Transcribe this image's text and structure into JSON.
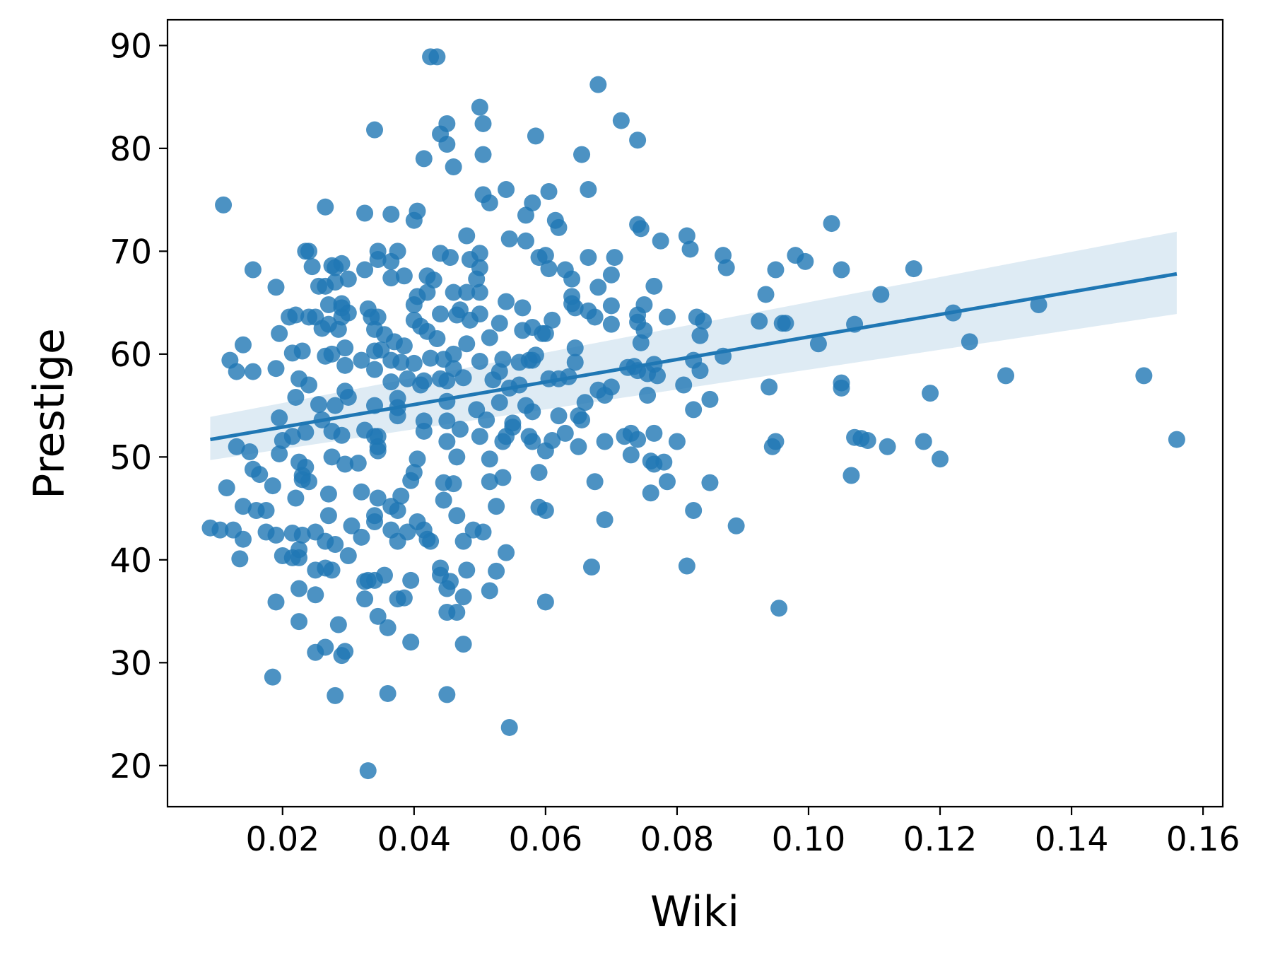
{
  "chart_data": {
    "type": "scatter",
    "xlabel": "Wiki",
    "ylabel": "Prestige",
    "xlim": [
      0.0025,
      0.163
    ],
    "ylim": [
      16,
      92.5
    ],
    "x_ticks": [
      0.02,
      0.04,
      0.06,
      0.08,
      0.1,
      0.12,
      0.14,
      0.16
    ],
    "x_tick_labels": [
      "0.02",
      "0.04",
      "0.06",
      "0.08",
      "0.10",
      "0.12",
      "0.14",
      "0.16"
    ],
    "y_ticks": [
      20,
      30,
      40,
      50,
      60,
      70,
      80,
      90
    ],
    "y_tick_labels": [
      "20",
      "30",
      "40",
      "50",
      "60",
      "70",
      "80",
      "90"
    ],
    "grid": false,
    "legend": "none",
    "colors": {
      "points": "#1f77b4",
      "line": "#1f77b4",
      "band": "#1f77b4"
    },
    "regression": {
      "x": [
        0.009,
        0.156
      ],
      "y": [
        51.7,
        67.8
      ],
      "ci_upper": [
        53.9,
        71.9
      ],
      "ci_lower": [
        49.7,
        63.9
      ]
    },
    "points": [
      [
        0.0425,
        88.9
      ],
      [
        0.0435,
        88.9
      ],
      [
        0.068,
        86.2
      ],
      [
        0.05,
        84.0
      ],
      [
        0.0715,
        82.7
      ],
      [
        0.045,
        82.4
      ],
      [
        0.0505,
        82.4
      ],
      [
        0.034,
        81.8
      ],
      [
        0.044,
        81.4
      ],
      [
        0.0585,
        81.2
      ],
      [
        0.074,
        80.8
      ],
      [
        0.045,
        80.4
      ],
      [
        0.0505,
        79.4
      ],
      [
        0.0655,
        79.4
      ],
      [
        0.0415,
        79.0
      ],
      [
        0.046,
        78.2
      ],
      [
        0.0665,
        76.0
      ],
      [
        0.054,
        76.0
      ],
      [
        0.0605,
        75.8
      ],
      [
        0.0505,
        75.5
      ],
      [
        0.0515,
        74.7
      ],
      [
        0.058,
        74.7
      ],
      [
        0.011,
        74.5
      ],
      [
        0.0405,
        73.9
      ],
      [
        0.0265,
        74.3
      ],
      [
        0.0365,
        73.6
      ],
      [
        0.0325,
        73.7
      ],
      [
        0.057,
        73.5
      ],
      [
        0.04,
        73.0
      ],
      [
        0.0615,
        73.0
      ],
      [
        0.062,
        72.3
      ],
      [
        0.074,
        72.6
      ],
      [
        0.0745,
        72.2
      ],
      [
        0.1035,
        72.7
      ],
      [
        0.0815,
        71.5
      ],
      [
        0.0545,
        71.2
      ],
      [
        0.048,
        71.5
      ],
      [
        0.0775,
        71.0
      ],
      [
        0.057,
        71.0
      ],
      [
        0.082,
        70.2
      ],
      [
        0.024,
        70.0
      ],
      [
        0.0345,
        70.0
      ],
      [
        0.0375,
        70.0
      ],
      [
        0.0235,
        70.0
      ],
      [
        0.098,
        69.6
      ],
      [
        0.044,
        69.8
      ],
      [
        0.05,
        69.8
      ],
      [
        0.0665,
        69.4
      ],
      [
        0.087,
        69.6
      ],
      [
        0.0995,
        69.0
      ],
      [
        0.059,
        69.4
      ],
      [
        0.06,
        69.6
      ],
      [
        0.0345,
        69.2
      ],
      [
        0.0485,
        69.2
      ],
      [
        0.0365,
        69.0
      ],
      [
        0.0705,
        69.4
      ],
      [
        0.0455,
        69.4
      ],
      [
        0.0275,
        68.6
      ],
      [
        0.029,
        68.8
      ],
      [
        0.05,
        68.4
      ],
      [
        0.0605,
        68.3
      ],
      [
        0.028,
        68.4
      ],
      [
        0.0245,
        68.5
      ],
      [
        0.095,
        68.2
      ],
      [
        0.105,
        68.2
      ],
      [
        0.116,
        68.3
      ],
      [
        0.0875,
        68.4
      ],
      [
        0.0325,
        68.2
      ],
      [
        0.063,
        68.2
      ],
      [
        0.0155,
        68.2
      ],
      [
        0.07,
        67.7
      ],
      [
        0.042,
        67.6
      ],
      [
        0.0385,
        67.6
      ],
      [
        0.0495,
        67.3
      ],
      [
        0.0365,
        67.4
      ],
      [
        0.03,
        67.3
      ],
      [
        0.064,
        67.3
      ],
      [
        0.043,
        67.2
      ],
      [
        0.028,
        67.0
      ],
      [
        0.0255,
        66.6
      ],
      [
        0.0265,
        66.6
      ],
      [
        0.068,
        66.5
      ],
      [
        0.0765,
        66.6
      ],
      [
        0.019,
        66.5
      ],
      [
        0.048,
        66.0
      ],
      [
        0.042,
        66.0
      ],
      [
        0.05,
        66.0
      ],
      [
        0.046,
        66.0
      ],
      [
        0.0405,
        65.6
      ],
      [
        0.0935,
        65.8
      ],
      [
        0.111,
        65.8
      ],
      [
        0.064,
        65.6
      ],
      [
        0.054,
        65.1
      ],
      [
        0.029,
        64.9
      ],
      [
        0.04,
        64.8
      ],
      [
        0.135,
        64.8
      ],
      [
        0.064,
        64.9
      ],
      [
        0.07,
        64.7
      ],
      [
        0.027,
        64.8
      ],
      [
        0.0565,
        64.5
      ],
      [
        0.0645,
        64.5
      ],
      [
        0.033,
        64.4
      ],
      [
        0.047,
        64.3
      ],
      [
        0.075,
        64.8
      ],
      [
        0.0665,
        64.2
      ],
      [
        0.029,
        64.5
      ],
      [
        0.03,
        64.0
      ],
      [
        0.022,
        63.8
      ],
      [
        0.074,
        63.8
      ],
      [
        0.122,
        64.0
      ],
      [
        0.044,
        63.9
      ],
      [
        0.05,
        63.9
      ],
      [
        0.029,
        63.6
      ],
      [
        0.024,
        63.6
      ],
      [
        0.021,
        63.6
      ],
      [
        0.0335,
        63.6
      ],
      [
        0.025,
        63.6
      ],
      [
        0.0465,
        63.8
      ],
      [
        0.0345,
        63.6
      ],
      [
        0.04,
        63.3
      ],
      [
        0.0485,
        63.3
      ],
      [
        0.0675,
        63.6
      ],
      [
        0.0785,
        63.6
      ],
      [
        0.083,
        63.6
      ],
      [
        0.061,
        63.3
      ],
      [
        0.0925,
        63.2
      ],
      [
        0.084,
        63.2
      ],
      [
        0.074,
        63.1
      ],
      [
        0.0965,
        63.0
      ],
      [
        0.096,
        63.0
      ],
      [
        0.027,
        62.9
      ],
      [
        0.07,
        62.9
      ],
      [
        0.107,
        62.9
      ],
      [
        0.053,
        63.0
      ],
      [
        0.041,
        62.7
      ],
      [
        0.034,
        62.4
      ],
      [
        0.058,
        62.6
      ],
      [
        0.0285,
        62.4
      ],
      [
        0.042,
        62.2
      ],
      [
        0.026,
        62.5
      ],
      [
        0.0565,
        62.3
      ],
      [
        0.075,
        62.3
      ],
      [
        0.0195,
        62.0
      ],
      [
        0.0595,
        62.0
      ],
      [
        0.0355,
        61.9
      ],
      [
        0.06,
        62.0
      ],
      [
        0.0835,
        61.8
      ],
      [
        0.0515,
        61.6
      ],
      [
        0.0435,
        61.5
      ],
      [
        0.1245,
        61.2
      ],
      [
        0.037,
        61.2
      ],
      [
        0.0745,
        61.1
      ],
      [
        0.1015,
        61.0
      ],
      [
        0.014,
        60.9
      ],
      [
        0.048,
        61.0
      ],
      [
        0.0385,
        60.8
      ],
      [
        0.0295,
        60.6
      ],
      [
        0.035,
        60.4
      ],
      [
        0.0645,
        60.6
      ],
      [
        0.0215,
        60.1
      ],
      [
        0.023,
        60.3
      ],
      [
        0.034,
        60.3
      ],
      [
        0.0275,
        60.0
      ],
      [
        0.046,
        60.0
      ],
      [
        0.0585,
        59.9
      ],
      [
        0.087,
        59.8
      ],
      [
        0.0265,
        59.8
      ],
      [
        0.0425,
        59.6
      ],
      [
        0.032,
        59.4
      ],
      [
        0.0365,
        59.4
      ],
      [
        0.0535,
        59.5
      ],
      [
        0.0445,
        59.5
      ],
      [
        0.058,
        59.4
      ],
      [
        0.0825,
        59.4
      ],
      [
        0.012,
        59.4
      ],
      [
        0.04,
        59.1
      ],
      [
        0.056,
        59.2
      ],
      [
        0.038,
        59.2
      ],
      [
        0.05,
        59.3
      ],
      [
        0.0575,
        59.4
      ],
      [
        0.0645,
        59.2
      ],
      [
        0.0765,
        59.0
      ],
      [
        0.0295,
        58.9
      ],
      [
        0.0735,
        58.8
      ],
      [
        0.0725,
        58.7
      ],
      [
        0.046,
        58.6
      ],
      [
        0.074,
        58.4
      ],
      [
        0.0835,
        58.4
      ],
      [
        0.019,
        58.6
      ],
      [
        0.013,
        58.3
      ],
      [
        0.0155,
        58.3
      ],
      [
        0.034,
        58.5
      ],
      [
        0.053,
        58.3
      ],
      [
        0.0755,
        58.1
      ],
      [
        0.077,
        57.9
      ],
      [
        0.0635,
        57.8
      ],
      [
        0.13,
        57.9
      ],
      [
        0.151,
        57.9
      ],
      [
        0.0475,
        57.7
      ],
      [
        0.044,
        57.6
      ],
      [
        0.039,
        57.6
      ],
      [
        0.062,
        57.6
      ],
      [
        0.052,
        57.5
      ],
      [
        0.0225,
        57.6
      ],
      [
        0.0415,
        57.4
      ],
      [
        0.045,
        57.4
      ],
      [
        0.0605,
        57.6
      ],
      [
        0.0365,
        57.3
      ],
      [
        0.105,
        57.2
      ],
      [
        0.081,
        57.0
      ],
      [
        0.041,
        57.0
      ],
      [
        0.056,
        57.0
      ],
      [
        0.024,
        57.0
      ],
      [
        0.07,
        56.8
      ],
      [
        0.094,
        56.8
      ],
      [
        0.105,
        56.7
      ],
      [
        0.068,
        56.5
      ],
      [
        0.0295,
        56.4
      ],
      [
        0.0545,
        56.7
      ],
      [
        0.069,
        56.0
      ],
      [
        0.1185,
        56.2
      ],
      [
        0.0755,
        56.0
      ],
      [
        0.03,
        55.8
      ],
      [
        0.022,
        55.8
      ],
      [
        0.0375,
        55.7
      ],
      [
        0.085,
        55.6
      ],
      [
        0.045,
        55.4
      ],
      [
        0.053,
        55.3
      ],
      [
        0.066,
        55.3
      ],
      [
        0.057,
        55.0
      ],
      [
        0.034,
        55.0
      ],
      [
        0.0255,
        55.1
      ],
      [
        0.028,
        55.0
      ],
      [
        0.0375,
        54.8
      ],
      [
        0.0495,
        54.6
      ],
      [
        0.0825,
        54.6
      ],
      [
        0.058,
        54.4
      ],
      [
        0.065,
        54.0
      ],
      [
        0.0195,
        53.8
      ],
      [
        0.0375,
        54.0
      ],
      [
        0.062,
        54.0
      ],
      [
        0.026,
        53.6
      ],
      [
        0.0415,
        53.5
      ],
      [
        0.051,
        53.6
      ],
      [
        0.0655,
        53.6
      ],
      [
        0.045,
        53.5
      ],
      [
        0.055,
        53.3
      ],
      [
        0.055,
        52.9
      ],
      [
        0.047,
        52.7
      ],
      [
        0.0325,
        52.6
      ],
      [
        0.0415,
        52.5
      ],
      [
        0.0275,
        52.5
      ],
      [
        0.0235,
        52.4
      ],
      [
        0.063,
        52.3
      ],
      [
        0.073,
        52.3
      ],
      [
        0.0765,
        52.3
      ],
      [
        0.0345,
        52.0
      ],
      [
        0.029,
        52.1
      ],
      [
        0.0215,
        52.0
      ],
      [
        0.054,
        52.0
      ],
      [
        0.072,
        52.0
      ],
      [
        0.05,
        52.0
      ],
      [
        0.0575,
        52.0
      ],
      [
        0.034,
        52.0
      ],
      [
        0.107,
        51.9
      ],
      [
        0.074,
        51.7
      ],
      [
        0.061,
        51.6
      ],
      [
        0.08,
        51.5
      ],
      [
        0.02,
        51.6
      ],
      [
        0.0535,
        51.5
      ],
      [
        0.045,
        51.5
      ],
      [
        0.058,
        51.5
      ],
      [
        0.069,
        51.5
      ],
      [
        0.108,
        51.8
      ],
      [
        0.109,
        51.6
      ],
      [
        0.1175,
        51.5
      ],
      [
        0.095,
        51.5
      ],
      [
        0.112,
        51.0
      ],
      [
        0.0945,
        51.0
      ],
      [
        0.0345,
        51.0
      ],
      [
        0.065,
        51.0
      ],
      [
        0.013,
        51.0
      ],
      [
        0.06,
        50.6
      ],
      [
        0.0345,
        50.6
      ],
      [
        0.015,
        50.5
      ],
      [
        0.156,
        51.7
      ],
      [
        0.073,
        50.2
      ],
      [
        0.0195,
        50.3
      ],
      [
        0.0275,
        50.0
      ],
      [
        0.0465,
        50.0
      ],
      [
        0.0405,
        49.8
      ],
      [
        0.12,
        49.8
      ],
      [
        0.076,
        49.6
      ],
      [
        0.0515,
        49.8
      ],
      [
        0.0225,
        49.5
      ],
      [
        0.0295,
        49.3
      ],
      [
        0.0315,
        49.4
      ],
      [
        0.078,
        49.5
      ],
      [
        0.0765,
        49.3
      ],
      [
        0.0235,
        49.0
      ],
      [
        0.0155,
        48.8
      ],
      [
        0.023,
        48.2
      ],
      [
        0.04,
        48.5
      ],
      [
        0.059,
        48.5
      ],
      [
        0.1065,
        48.2
      ],
      [
        0.0165,
        48.3
      ],
      [
        0.023,
        47.8
      ],
      [
        0.0535,
        48.0
      ],
      [
        0.0395,
        47.7
      ],
      [
        0.0515,
        47.6
      ],
      [
        0.0675,
        47.6
      ],
      [
        0.0785,
        47.6
      ],
      [
        0.085,
        47.5
      ],
      [
        0.024,
        47.6
      ],
      [
        0.046,
        47.4
      ],
      [
        0.0445,
        47.5
      ],
      [
        0.0185,
        47.2
      ],
      [
        0.0115,
        47.0
      ],
      [
        0.032,
        46.6
      ],
      [
        0.027,
        46.4
      ],
      [
        0.038,
        46.2
      ],
      [
        0.076,
        46.5
      ],
      [
        0.022,
        46.0
      ],
      [
        0.0345,
        46.0
      ],
      [
        0.0445,
        45.8
      ],
      [
        0.059,
        45.1
      ],
      [
        0.0525,
        45.2
      ],
      [
        0.0365,
        45.2
      ],
      [
        0.014,
        45.2
      ],
      [
        0.0375,
        44.8
      ],
      [
        0.016,
        44.8
      ],
      [
        0.0175,
        44.8
      ],
      [
        0.06,
        44.8
      ],
      [
        0.0825,
        44.8
      ],
      [
        0.034,
        44.3
      ],
      [
        0.0465,
        44.3
      ],
      [
        0.027,
        44.3
      ],
      [
        0.069,
        43.9
      ],
      [
        0.0405,
        43.7
      ],
      [
        0.034,
        43.7
      ],
      [
        0.089,
        43.3
      ],
      [
        0.009,
        43.1
      ],
      [
        0.0305,
        43.3
      ],
      [
        0.0105,
        42.9
      ],
      [
        0.0125,
        42.9
      ],
      [
        0.0175,
        42.7
      ],
      [
        0.0365,
        42.9
      ],
      [
        0.0415,
        42.9
      ],
      [
        0.049,
        42.9
      ],
      [
        0.0215,
        42.6
      ],
      [
        0.025,
        42.7
      ],
      [
        0.039,
        42.7
      ],
      [
        0.0505,
        42.7
      ],
      [
        0.023,
        42.4
      ],
      [
        0.032,
        42.2
      ],
      [
        0.019,
        42.4
      ],
      [
        0.014,
        42.0
      ],
      [
        0.042,
        42.0
      ],
      [
        0.0265,
        41.8
      ],
      [
        0.0475,
        41.8
      ],
      [
        0.0425,
        41.8
      ],
      [
        0.0375,
        41.8
      ],
      [
        0.028,
        41.5
      ],
      [
        0.0225,
        41.0
      ],
      [
        0.054,
        40.7
      ],
      [
        0.02,
        40.4
      ],
      [
        0.0215,
        40.2
      ],
      [
        0.03,
        40.4
      ],
      [
        0.0135,
        40.1
      ],
      [
        0.0225,
        40.2
      ],
      [
        0.0815,
        39.4
      ],
      [
        0.067,
        39.3
      ],
      [
        0.044,
        39.2
      ],
      [
        0.0265,
        39.2
      ],
      [
        0.025,
        39.0
      ],
      [
        0.0275,
        39.0
      ],
      [
        0.048,
        39.0
      ],
      [
        0.0525,
        38.9
      ],
      [
        0.044,
        38.5
      ],
      [
        0.0355,
        38.5
      ],
      [
        0.033,
        38.0
      ],
      [
        0.034,
        38.0
      ],
      [
        0.0325,
        37.9
      ],
      [
        0.0455,
        37.9
      ],
      [
        0.0395,
        38.0
      ],
      [
        0.0225,
        37.2
      ],
      [
        0.045,
        37.2
      ],
      [
        0.0515,
        37.0
      ],
      [
        0.025,
        36.6
      ],
      [
        0.0375,
        36.2
      ],
      [
        0.0475,
        36.4
      ],
      [
        0.0385,
        36.3
      ],
      [
        0.0325,
        36.2
      ],
      [
        0.06,
        35.9
      ],
      [
        0.019,
        35.9
      ],
      [
        0.0955,
        35.3
      ],
      [
        0.0465,
        34.9
      ],
      [
        0.045,
        34.9
      ],
      [
        0.0345,
        34.5
      ],
      [
        0.0225,
        34.0
      ],
      [
        0.0285,
        33.7
      ],
      [
        0.036,
        33.4
      ],
      [
        0.0395,
        32.0
      ],
      [
        0.0475,
        31.8
      ],
      [
        0.0265,
        31.5
      ],
      [
        0.0295,
        31.1
      ],
      [
        0.025,
        31.0
      ],
      [
        0.029,
        30.7
      ],
      [
        0.0185,
        28.6
      ],
      [
        0.036,
        27.0
      ],
      [
        0.045,
        26.9
      ],
      [
        0.028,
        26.8
      ],
      [
        0.0545,
        23.7
      ],
      [
        0.033,
        19.5
      ]
    ]
  }
}
